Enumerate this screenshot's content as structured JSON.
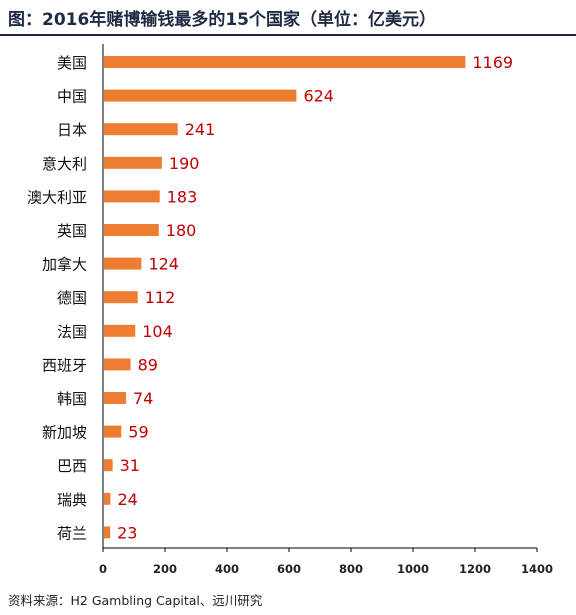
{
  "title": "图：2016年赌博输钱最多的15个国家（单位：亿美元）",
  "source": "资料来源：H2 Gambling Capital、远川研究",
  "colors": {
    "bar": "#ED7D31",
    "value_label": "#C00000",
    "title": "#1f2a44",
    "axis": "#000000"
  },
  "chart_data": {
    "type": "bar",
    "orientation": "horizontal",
    "title": "图：2016年赌博输钱最多的15个国家（单位：亿美元）",
    "xlabel": "",
    "ylabel": "",
    "xlim": [
      0,
      1400
    ],
    "xticks": [
      0,
      200,
      400,
      600,
      800,
      1000,
      1200,
      1400
    ],
    "grid": false,
    "categories": [
      "美国",
      "中国",
      "日本",
      "意大利",
      "澳大利亚",
      "英国",
      "加拿大",
      "德国",
      "法国",
      "西班牙",
      "韩国",
      "新加坡",
      "巴西",
      "瑞典",
      "荷兰"
    ],
    "values": [
      1169,
      624,
      241,
      190,
      183,
      180,
      124,
      112,
      104,
      89,
      74,
      59,
      31,
      24,
      23
    ]
  }
}
